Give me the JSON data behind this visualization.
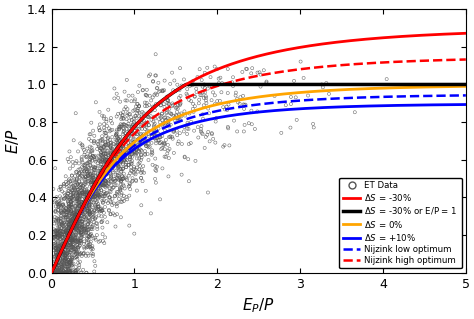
{
  "title": "",
  "xlabel": "$E_P/P$",
  "ylabel": "$E/P$",
  "xlim": [
    0,
    5
  ],
  "ylim": [
    0,
    1.4
  ],
  "xticks": [
    0,
    1,
    2,
    3,
    4,
    5
  ],
  "yticks": [
    0,
    0.2,
    0.4,
    0.6,
    0.8,
    1.0,
    1.2,
    1.4
  ],
  "scatter_n": 3000,
  "scatter_seed": 42,
  "background_color": "#ffffff",
  "curve_linewidth": 2.0,
  "dashed_linewidth": 1.8,
  "colors": {
    "red": "#ff0000",
    "black": "#000000",
    "orange": "#ffa500",
    "blue": "#0000ff",
    "gray": "#808080"
  }
}
